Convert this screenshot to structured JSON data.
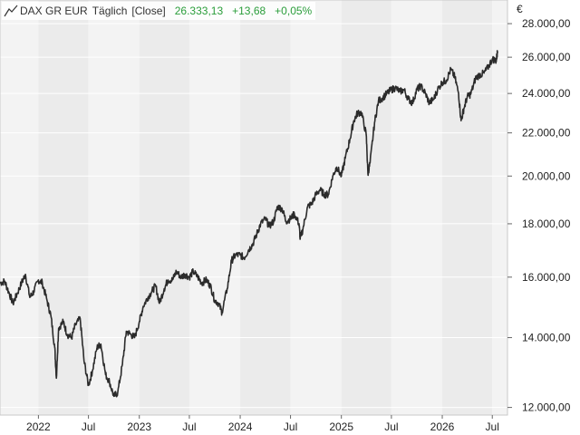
{
  "legend": {
    "instrument": "DAX GR EUR",
    "interval": "Täglich",
    "price_type": "[Close]",
    "last": "26.333,13",
    "change": "+13,68",
    "change_pct": "+0,05%",
    "change_color": "#2a9d3a"
  },
  "chart_data": {
    "type": "line",
    "yscale": "log",
    "ylim": [
      11800,
      29500
    ],
    "y_unit": "€",
    "yticks": [
      12000,
      14000,
      16000,
      18000,
      20000,
      22000,
      24000,
      26000,
      28000
    ],
    "ytick_labels": [
      "12.000,00",
      "14.000,00",
      "16.000,00",
      "18.000,00",
      "20.000,00",
      "22.000,00",
      "24.000,00",
      "26.000,00",
      "28.000,00"
    ],
    "xlim": [
      "2021-08-15",
      "2026-08-25"
    ],
    "xticks": [
      "2022-01-01",
      "2022-07-01",
      "2023-01-01",
      "2023-07-01",
      "2024-01-01",
      "2024-07-01",
      "2025-01-01",
      "2025-07-01",
      "2026-01-01",
      "2026-07-01"
    ],
    "xtick_labels": [
      "2022",
      "Jul",
      "2023",
      "Jul",
      "2024",
      "Jul",
      "2025",
      "Jul",
      "2026",
      "Jul"
    ],
    "grid": true,
    "line_color": "#2b2b2b",
    "series": [
      {
        "x": [
          "2021-08-15",
          "2021-09-01",
          "2021-09-15",
          "2021-10-01",
          "2021-10-15",
          "2021-11-01",
          "2021-11-15",
          "2021-12-01",
          "2021-12-15",
          "2022-01-01",
          "2022-01-15",
          "2022-02-01",
          "2022-02-15",
          "2022-03-01",
          "2022-03-07",
          "2022-03-15",
          "2022-04-01",
          "2022-04-15",
          "2022-05-01",
          "2022-05-15",
          "2022-06-01",
          "2022-06-15",
          "2022-07-01",
          "2022-07-15",
          "2022-08-01",
          "2022-08-15",
          "2022-09-01",
          "2022-09-15",
          "2022-10-01",
          "2022-10-15",
          "2022-11-01",
          "2022-11-15",
          "2022-12-01",
          "2022-12-15",
          "2023-01-01",
          "2023-01-15",
          "2023-02-01",
          "2023-02-15",
          "2023-03-01",
          "2023-03-15",
          "2023-04-01",
          "2023-04-15",
          "2023-05-01",
          "2023-05-15",
          "2023-06-01",
          "2023-06-15",
          "2023-07-01",
          "2023-07-15",
          "2023-08-01",
          "2023-08-15",
          "2023-09-01",
          "2023-09-15",
          "2023-10-01",
          "2023-10-15",
          "2023-10-27",
          "2023-11-15",
          "2023-12-01",
          "2023-12-15",
          "2024-01-01",
          "2024-01-15",
          "2024-02-01",
          "2024-02-15",
          "2024-03-01",
          "2024-03-15",
          "2024-04-01",
          "2024-04-15",
          "2024-05-01",
          "2024-05-15",
          "2024-06-01",
          "2024-06-15",
          "2024-07-01",
          "2024-07-15",
          "2024-08-01",
          "2024-08-05",
          "2024-08-15",
          "2024-09-01",
          "2024-09-15",
          "2024-10-01",
          "2024-10-15",
          "2024-11-01",
          "2024-11-15",
          "2024-12-01",
          "2024-12-15",
          "2025-01-01",
          "2025-01-15",
          "2025-02-01",
          "2025-02-15",
          "2025-03-01",
          "2025-03-15",
          "2025-04-01",
          "2025-04-07",
          "2025-04-15",
          "2025-05-01",
          "2025-05-15",
          "2025-06-01",
          "2025-06-15",
          "2025-07-01",
          "2025-07-15",
          "2025-08-01",
          "2025-08-15",
          "2025-09-01",
          "2025-09-15",
          "2025-10-01",
          "2025-10-15",
          "2025-11-01",
          "2025-11-15",
          "2025-12-01",
          "2025-12-15",
          "2026-01-01",
          "2026-01-15",
          "2026-02-01",
          "2026-02-15",
          "2026-03-01",
          "2026-03-10",
          "2026-03-20",
          "2026-04-01",
          "2026-04-15",
          "2026-05-01",
          "2026-05-15",
          "2026-06-01",
          "2026-06-15",
          "2026-07-01",
          "2026-07-15",
          "2026-07-20"
        ],
        "y": [
          15800,
          15850,
          15500,
          15100,
          15400,
          15800,
          16100,
          15300,
          15500,
          15900,
          15800,
          15200,
          14700,
          13700,
          12800,
          14300,
          14500,
          14100,
          14000,
          14400,
          14600,
          13300,
          12600,
          13000,
          13700,
          13800,
          12900,
          12700,
          12300,
          12400,
          13200,
          14200,
          14100,
          14000,
          14500,
          15000,
          15300,
          15500,
          15700,
          15100,
          15600,
          15900,
          15900,
          16200,
          16000,
          16100,
          16000,
          16200,
          16000,
          15800,
          15900,
          15700,
          15200,
          15100,
          14800,
          15600,
          16600,
          16800,
          16800,
          16700,
          17000,
          17200,
          17600,
          18000,
          18200,
          17900,
          18100,
          18700,
          18600,
          18100,
          18200,
          18400,
          18000,
          17400,
          17800,
          18700,
          18800,
          19200,
          19400,
          19200,
          19200,
          20000,
          20400,
          20000,
          20800,
          21700,
          22600,
          23000,
          23000,
          21900,
          20100,
          20600,
          22500,
          23600,
          23800,
          24000,
          24200,
          24300,
          24100,
          24200,
          23700,
          23500,
          24200,
          24400,
          24000,
          23500,
          23700,
          24200,
          24600,
          24700,
          25300,
          24900,
          24000,
          22600,
          23200,
          23800,
          24000,
          24800,
          25000,
          25100,
          25400,
          25900,
          25800,
          26333
        ]
      }
    ]
  }
}
